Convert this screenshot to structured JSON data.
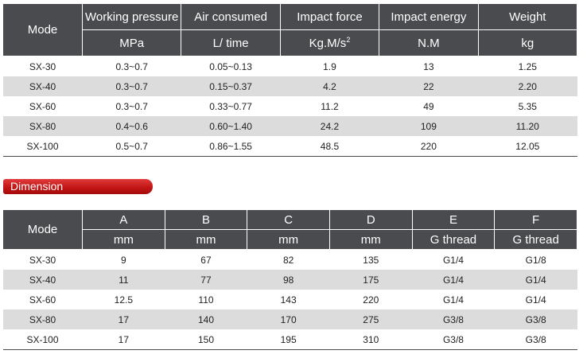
{
  "spec_table": {
    "mode_header": "Mode",
    "columns": [
      {
        "name": "Working pressure",
        "unit": "MPa"
      },
      {
        "name": "Air consumed",
        "unit": "L/ time"
      },
      {
        "name": "Impact force",
        "unit": "Kg.M/s",
        "unit_sup": "2"
      },
      {
        "name": "Impact energy",
        "unit": "N.M"
      },
      {
        "name": "Weight",
        "unit": "kg"
      }
    ],
    "rows": [
      {
        "mode": "SX-30",
        "values": [
          "0.3~0.7",
          "0.05~0.13",
          "1.9",
          "13",
          "1.25"
        ]
      },
      {
        "mode": "SX-40",
        "values": [
          "0.3~0.7",
          "0.15~0.37",
          "4.2",
          "22",
          "2.20"
        ]
      },
      {
        "mode": "SX-60",
        "values": [
          "0.3~0.7",
          "0.33~0.77",
          "11.2",
          "49",
          "5.35"
        ]
      },
      {
        "mode": "SX-80",
        "values": [
          "0.4~0.6",
          "0.60~1.40",
          "24.2",
          "109",
          "11.20"
        ]
      },
      {
        "mode": "SX-100",
        "values": [
          "0.5~0.7",
          "0.86~1.55",
          "48.5",
          "220",
          "12.05"
        ]
      }
    ]
  },
  "dimension_banner": {
    "label": "Dimension",
    "color": "#c31616"
  },
  "dimension_table": {
    "mode_header": "Mode",
    "columns": [
      {
        "name": "A",
        "unit": "mm"
      },
      {
        "name": "B",
        "unit": "mm"
      },
      {
        "name": "C",
        "unit": "mm"
      },
      {
        "name": "D",
        "unit": "mm"
      },
      {
        "name": "E",
        "unit": "G thread"
      },
      {
        "name": "F",
        "unit": "G thread"
      }
    ],
    "rows": [
      {
        "mode": "SX-30",
        "values": [
          "9",
          "67",
          "82",
          "135",
          "G1/4",
          "G1/8"
        ]
      },
      {
        "mode": "SX-40",
        "values": [
          "11",
          "77",
          "98",
          "175",
          "G1/4",
          "G1/4"
        ]
      },
      {
        "mode": "SX-60",
        "values": [
          "12.5",
          "110",
          "143",
          "220",
          "G1/4",
          "G1/4"
        ]
      },
      {
        "mode": "SX-80",
        "values": [
          "17",
          "140",
          "170",
          "275",
          "G3/8",
          "G3/8"
        ]
      },
      {
        "mode": "SX-100",
        "values": [
          "17",
          "150",
          "195",
          "310",
          "G3/8",
          "G3/8"
        ]
      }
    ]
  },
  "colors": {
    "header_bg": "#4a4b4e",
    "stripe": "#dcdcdc",
    "accent": "#c31616"
  }
}
